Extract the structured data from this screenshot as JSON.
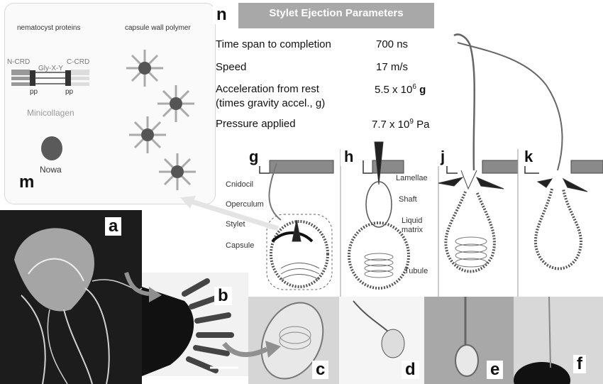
{
  "panel_m": {
    "letter": "m",
    "left_title": "nematocyst proteins",
    "right_title": "capsule wall polymer",
    "ncrd": "N-CRD",
    "ccrd": "C-CRD",
    "glyxy": "Gly-X-Y",
    "pp_left": "pp",
    "pp_right": "pp",
    "minicollagen": "Minicollagen",
    "nowa": "Nowa"
  },
  "panel_n": {
    "letter": "n",
    "title": "Stylet Ejection Parameters",
    "rows": [
      {
        "label": "Time span to completion",
        "value": "700 ns"
      },
      {
        "label": "Speed",
        "value": "17 m/s"
      },
      {
        "label": "Acceleration from rest",
        "label2": "(times gravity accel., g)",
        "value": "5.5 x 10",
        "sup": "6",
        "unit": "g"
      },
      {
        "label": "Pressure applied",
        "value": "7.7 x 10",
        "sup": "9",
        "unit": "Pa"
      }
    ]
  },
  "diagram_labels": {
    "g": "g",
    "h": "h",
    "j": "j",
    "k": "k",
    "cnidocil": "Cnidocil",
    "operculum": "Operculum",
    "stylet": "Stylet",
    "capsule": "Capsule",
    "lamellae": "Lamellae",
    "shaft": "Shaft",
    "liquid": "Liquid",
    "matrix": "matrix",
    "tubule": "Tubule"
  },
  "photo_letters": {
    "a": "a",
    "b": "b",
    "c": "c",
    "d": "d",
    "e": "e",
    "f": "f"
  },
  "colors": {
    "panel_n_header": "#a8a8a8",
    "wall_dark": "#555555",
    "protein_dot": "#606060",
    "arrow": "#909090"
  }
}
